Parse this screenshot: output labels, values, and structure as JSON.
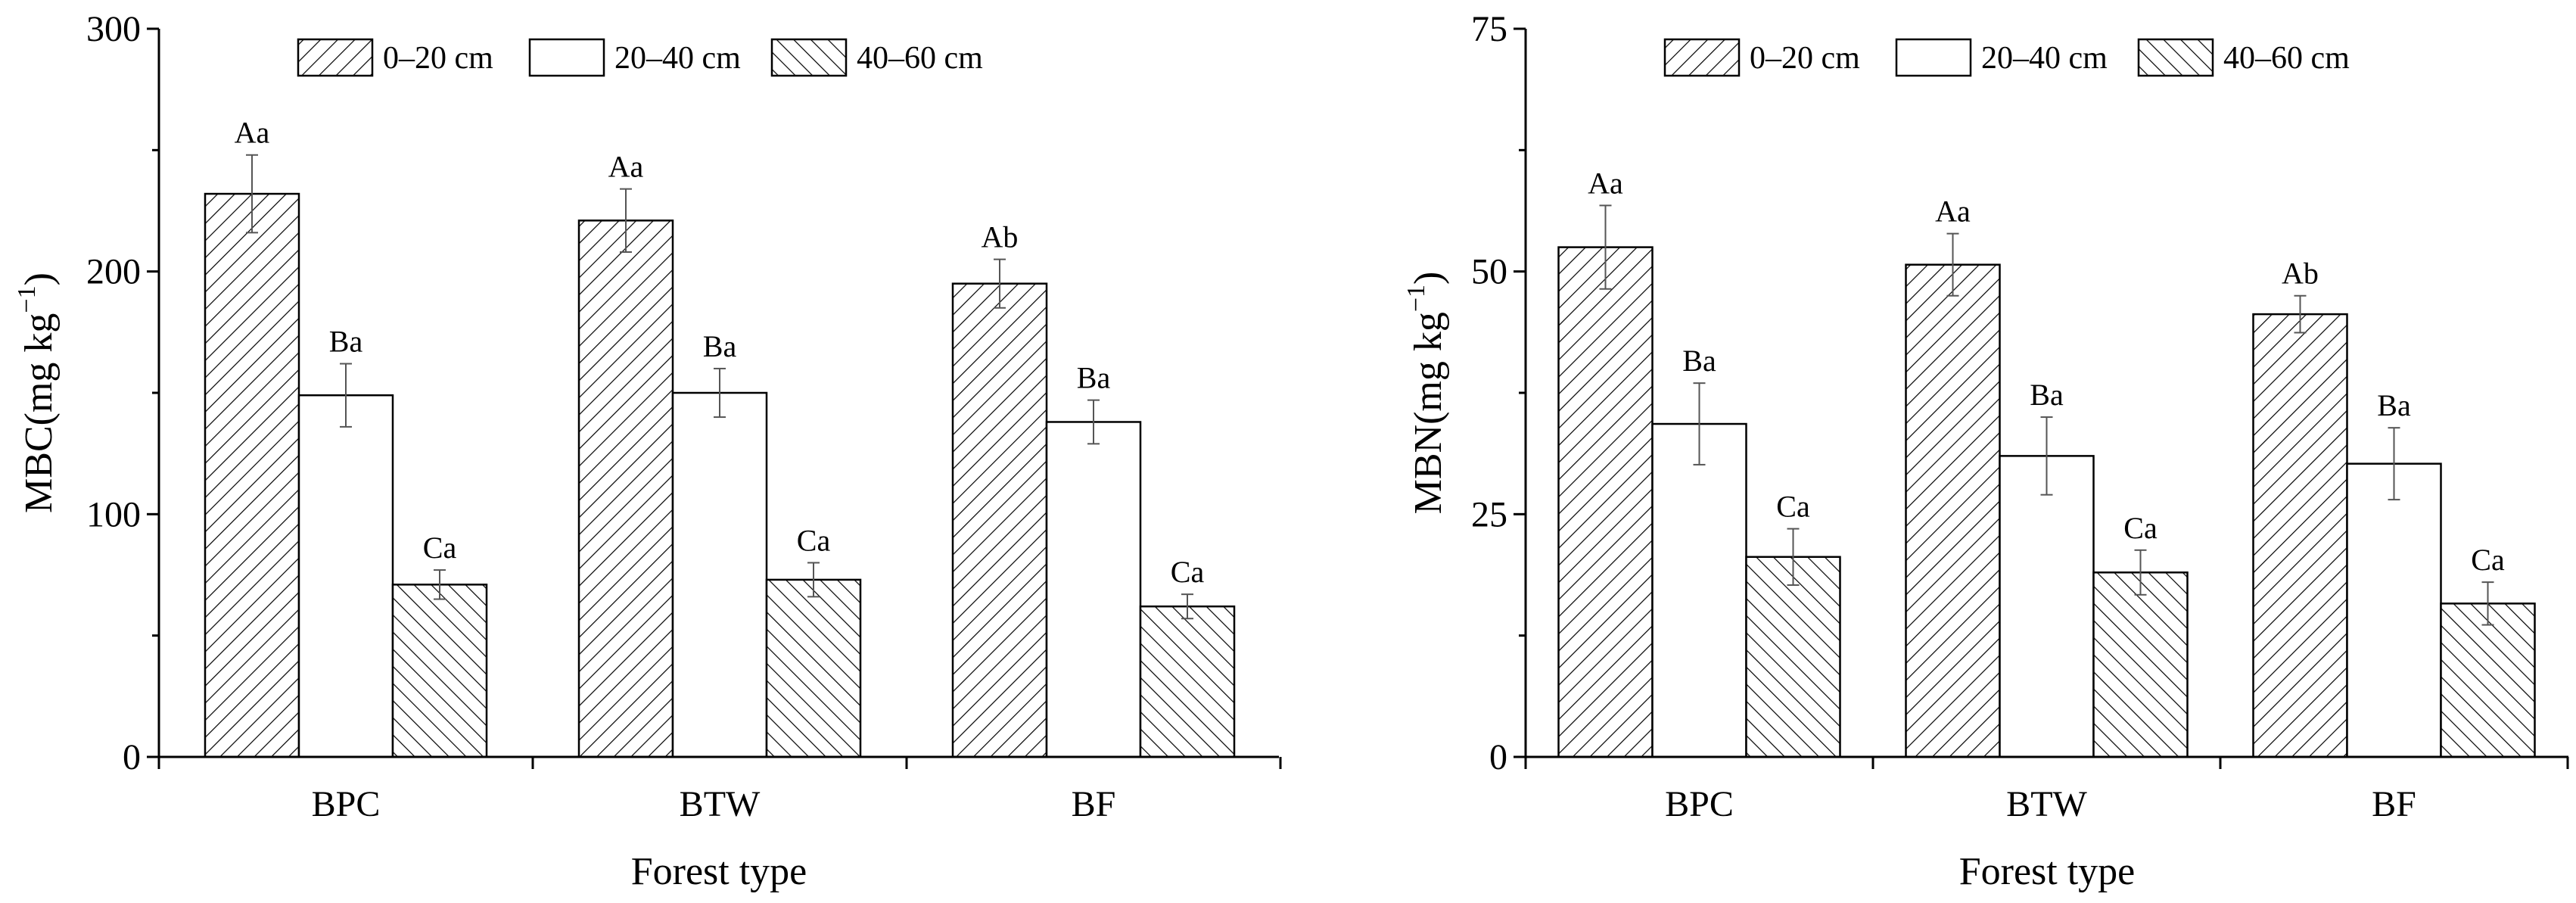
{
  "chart_data": [
    {
      "type": "bar",
      "categories": [
        "BPC",
        "BTW",
        "BF"
      ],
      "xlabel": "Forest type",
      "ylabel": "MBC(mg kg",
      "ylabel_sup": "−1",
      "ylabel_close": ")",
      "ylim": [
        0,
        300
      ],
      "yticks": [
        0,
        100,
        200,
        300
      ],
      "legend_position": "top",
      "series": [
        {
          "name": "0–20 cm",
          "pattern": "hatch-forward",
          "values": [
            232,
            221,
            195
          ],
          "errors": [
            16,
            13,
            10
          ],
          "labels": [
            "Aa",
            "Aa",
            "Ab"
          ]
        },
        {
          "name": "20–40 cm",
          "pattern": "solid-white",
          "values": [
            149,
            150,
            138
          ],
          "errors": [
            13,
            10,
            9
          ],
          "labels": [
            "Ba",
            "Ba",
            "Ba"
          ]
        },
        {
          "name": "40–60 cm",
          "pattern": "hatch-back",
          "values": [
            71,
            73,
            62
          ],
          "errors": [
            6,
            7,
            5
          ],
          "labels": [
            "Ca",
            "Ca",
            "Ca"
          ]
        }
      ]
    },
    {
      "type": "bar",
      "categories": [
        "BPC",
        "BTW",
        "BF"
      ],
      "xlabel": "Forest type",
      "ylabel": "MBN(mg kg",
      "ylabel_sup": "−1",
      "ylabel_close": ")",
      "ylim": [
        0,
        75
      ],
      "yticks": [
        0,
        25,
        50,
        75
      ],
      "legend_position": "top",
      "series": [
        {
          "name": "0–20 cm",
          "pattern": "hatch-forward",
          "values": [
            52.5,
            50.7,
            45.6
          ],
          "errors": [
            4.3,
            3.2,
            1.9
          ],
          "labels": [
            "Aa",
            "Aa",
            "Ab"
          ]
        },
        {
          "name": "20–40 cm",
          "pattern": "solid-white",
          "values": [
            34.3,
            31.0,
            30.2
          ],
          "errors": [
            4.2,
            4.0,
            3.7
          ],
          "labels": [
            "Ba",
            "Ba",
            "Ba"
          ]
        },
        {
          "name": "40–60 cm",
          "pattern": "hatch-back",
          "values": [
            20.6,
            19.0,
            15.8
          ],
          "errors": [
            2.9,
            2.3,
            2.2
          ],
          "labels": [
            "Ca",
            "Ca",
            "Ca"
          ]
        }
      ]
    }
  ]
}
